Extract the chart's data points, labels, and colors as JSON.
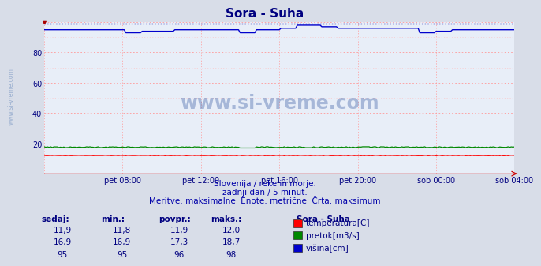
{
  "title": "Sora - Suha",
  "title_color": "#000080",
  "title_fontsize": 11,
  "bg_color": "#d8dde8",
  "plot_bg_color": "#e8eef8",
  "grid_color_h": "#ff9999",
  "grid_color_v": "#ff9999",
  "ylim": [
    0,
    100
  ],
  "ytick_vals": [
    20,
    40,
    60,
    80
  ],
  "xlabel_color": "#000080",
  "xtick_labels": [
    "pet 08:00",
    "pet 12:00",
    "pet 16:00",
    "pet 20:00",
    "sob 00:00",
    "sob 04:00"
  ],
  "n_points": 289,
  "temp_color": "#ff0000",
  "pretok_color": "#008800",
  "visina_color": "#0000cc",
  "max_line_color": "#0000aa",
  "max_line_value": 99,
  "xaxis_line_color": "#cc0000",
  "watermark_text": "www.si-vreme.com",
  "watermark_color": "#4466aa",
  "watermark_alpha": 0.4,
  "rotated_text": "www.si-vreme.com",
  "sub_text1": "Slovenija / reke in morje.",
  "sub_text2": "zadnji dan / 5 minut.",
  "sub_text3": "Meritve: maksimalne  Enote: metrične  Črta: maksimum",
  "sub_text_color": "#0000aa",
  "table_headers": [
    "sedaj:",
    "min.:",
    "povpr.:",
    "maks.:"
  ],
  "table_data_str": [
    [
      "11,9",
      "11,8",
      "11,9",
      "12,0"
    ],
    [
      "16,9",
      "16,9",
      "17,3",
      "18,7"
    ],
    [
      "95",
      "95",
      "96",
      "98"
    ]
  ],
  "table_color": "#000080",
  "legend_title": "Sora - Suha",
  "legend_items": [
    "temperatura[C]",
    "pretok[m3/s]",
    "višina[cm]"
  ],
  "legend_colors": [
    "#ff0000",
    "#008800",
    "#0000cc"
  ]
}
